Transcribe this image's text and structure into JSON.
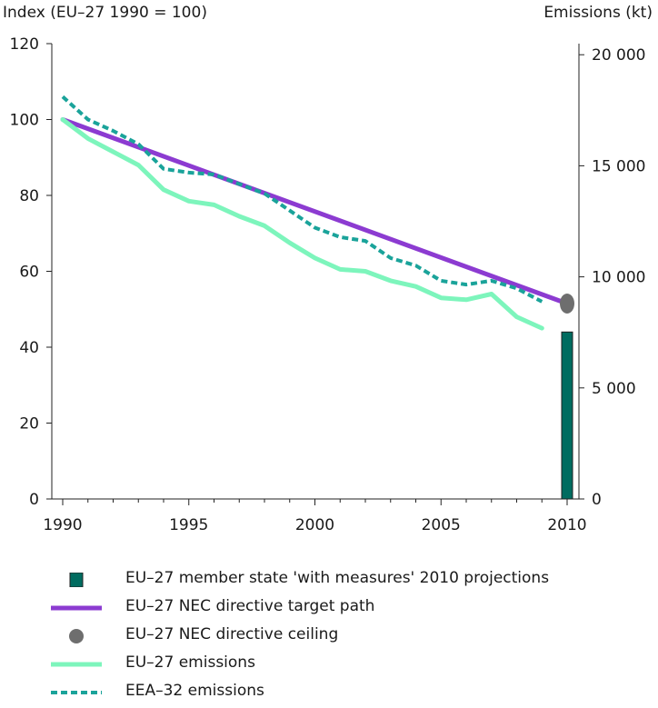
{
  "chart_data": {
    "type": "line",
    "left_axis_title": "Index (EU–27 1990 = 100)",
    "right_axis_title": "Emissions (kt)",
    "x_ticks": [
      1990,
      1995,
      2000,
      2005,
      2010
    ],
    "xlim": [
      1990,
      2010
    ],
    "y_left_ticks": [
      0,
      20,
      40,
      60,
      80,
      100,
      120
    ],
    "y_left_lim": [
      0,
      120
    ],
    "y_right_ticks": [
      "0",
      "5 000",
      "10 000",
      "15 000",
      "20 000"
    ],
    "y_right_values": [
      0,
      5000,
      10000,
      15000,
      20000
    ],
    "y_right_lim": [
      0,
      20500
    ],
    "grid": false,
    "legend_position": "bottom",
    "series": [
      {
        "name": "EU–27 member state 'with measures' 2010 projections",
        "kind": "bar",
        "color": "#006c60",
        "x": [
          2010
        ],
        "values": [
          44
        ]
      },
      {
        "name": "EU–27 NEC directive target path",
        "kind": "line",
        "color": "#8c3bd1",
        "x": [
          1990,
          2010
        ],
        "values": [
          100,
          51.5
        ]
      },
      {
        "name": "EU–27 NEC directive ceiling",
        "kind": "point",
        "color": "#6e6e6e",
        "x": [
          2010
        ],
        "values": [
          51.5
        ]
      },
      {
        "name": "EU–27 emissions",
        "kind": "line",
        "color": "#7df5bc",
        "x": [
          1990,
          1991,
          1992,
          1993,
          1994,
          1995,
          1996,
          1997,
          1998,
          1999,
          2000,
          2001,
          2002,
          2003,
          2004,
          2005,
          2006,
          2007,
          2008,
          2009
        ],
        "values": [
          100,
          95,
          91.5,
          88,
          81.5,
          78.5,
          77.5,
          74.5,
          72,
          67.5,
          63.5,
          60.5,
          60,
          57.5,
          56,
          53,
          52.5,
          54,
          48,
          45
        ]
      },
      {
        "name": "EEA–32 emissions",
        "kind": "dashed-line",
        "color": "#1aa39a",
        "x": [
          1990,
          1991,
          1992,
          1993,
          1994,
          1995,
          1996,
          1997,
          1998,
          1999,
          2000,
          2001,
          2002,
          2003,
          2004,
          2005,
          2006,
          2007,
          2008,
          2009
        ],
        "values": [
          106,
          100,
          97,
          93.5,
          87,
          86,
          85.5,
          83,
          80.5,
          76,
          71.5,
          69,
          68,
          63.5,
          61.5,
          57.5,
          56.5,
          57.5,
          55.5,
          52
        ]
      }
    ]
  }
}
